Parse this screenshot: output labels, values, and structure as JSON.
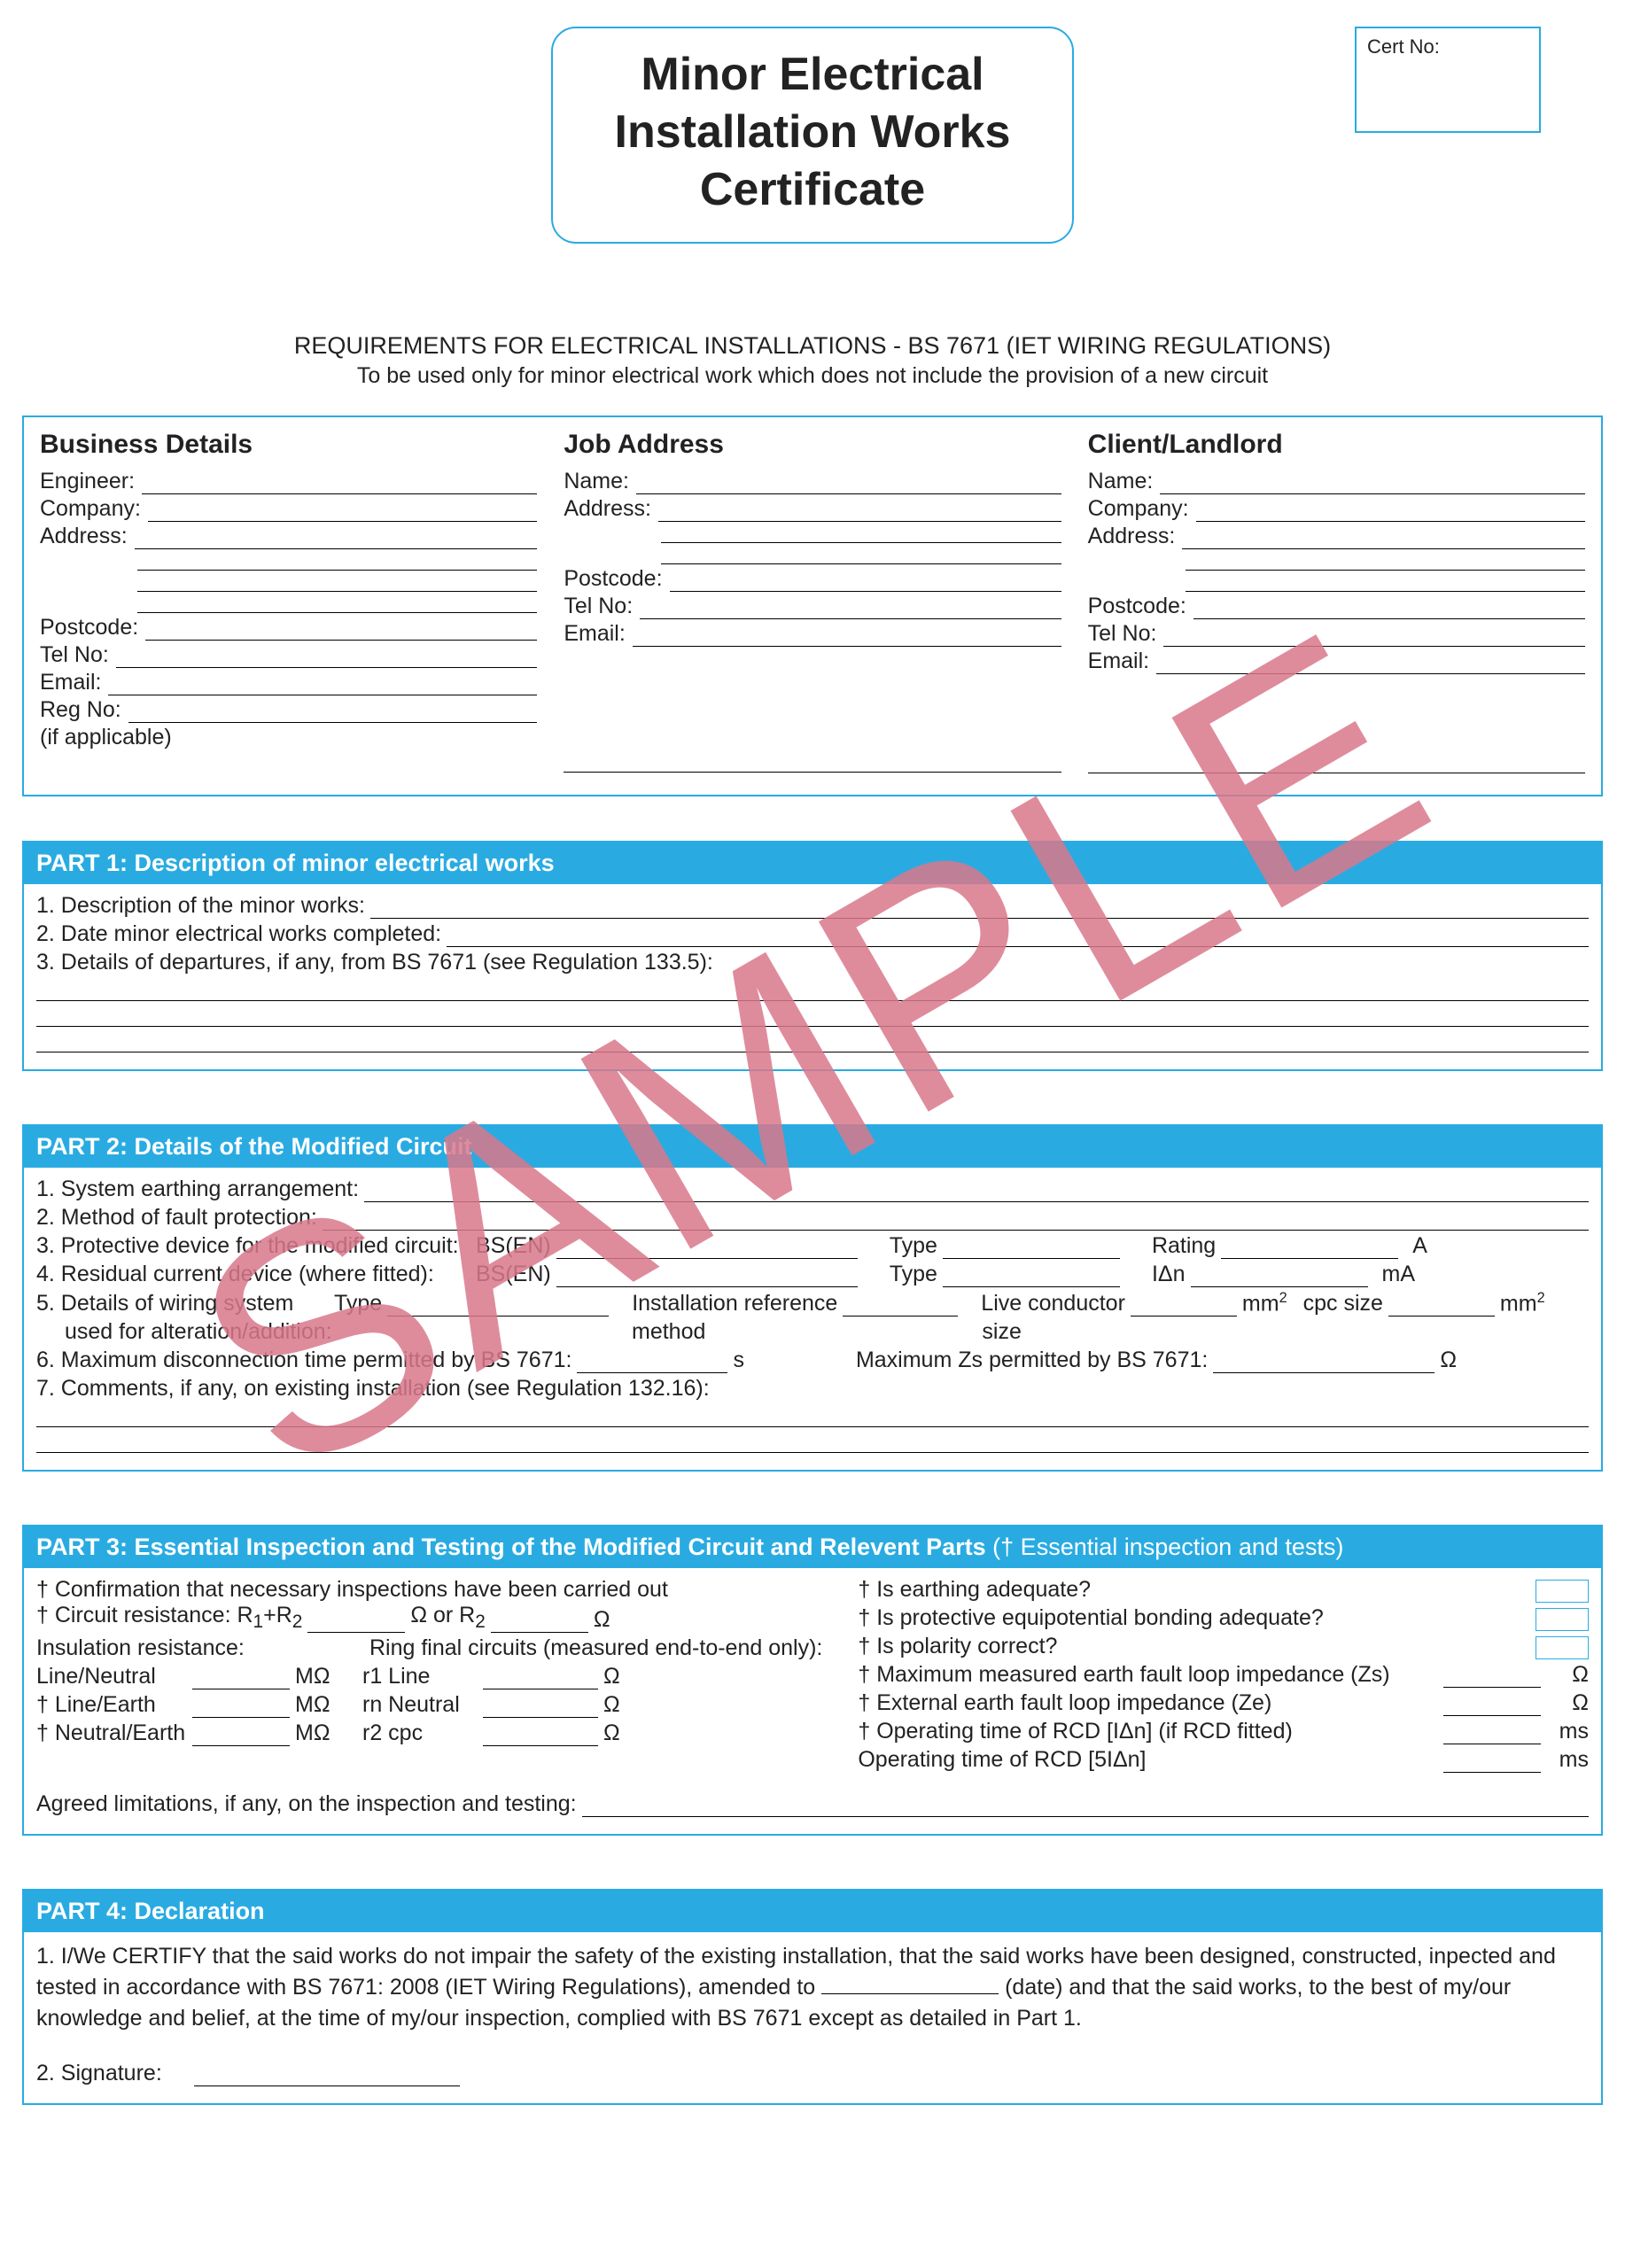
{
  "colors": {
    "accent": "#29abe2",
    "watermark": "#d9788b",
    "text": "#222222",
    "bg": "#ffffff"
  },
  "watermark": "SAMPLE",
  "title": {
    "line1": "Minor Electrical",
    "line2": "Installation Works",
    "line3": "Certificate"
  },
  "cert_box_label": "Cert No:",
  "requirements": {
    "line1": "REQUIREMENTS FOR ELECTRICAL INSTALLATIONS - BS 7671 (IET WIRING REGULATIONS)",
    "line2": "To be used only for minor electrical work which does not include the provision of a new circuit"
  },
  "details": {
    "business": {
      "heading": "Business Details",
      "fields": [
        "Engineer:",
        "Company:",
        "Address:"
      ],
      "extra_address_lines": 3,
      "fields2": [
        "Postcode:",
        "Tel No:",
        "Email:",
        "Reg No:"
      ],
      "tail": "(if applicable)"
    },
    "job": {
      "heading": "Job Address",
      "fields": [
        "Name:",
        "Address:"
      ],
      "extra_address_lines": 2,
      "fields2": [
        "Postcode:",
        "Tel No:",
        "Email:"
      ]
    },
    "client": {
      "heading": "Client/Landlord",
      "fields": [
        "Name:",
        "Company:",
        "Address:"
      ],
      "extra_address_lines": 2,
      "fields2": [
        "Postcode:",
        "Tel No:",
        "Email:"
      ]
    }
  },
  "part1": {
    "header": "PART 1: Description of minor electrical works",
    "items": [
      "1.  Description of the minor works:",
      "2.  Date minor electrical works completed:",
      "3.  Details of departures, if any, from BS 7671 (see Regulation 133.5):"
    ],
    "trailing_full_lines": 3
  },
  "part2": {
    "header": "PART 2: Details of the Modified Circuit",
    "row1": "1.  System earthing arrangement:",
    "row2": "2.  Method of fault protection:",
    "row3": {
      "lead": "3.  Protective device for the modified circuit:",
      "bs": "BS(EN)",
      "type": "Type",
      "rating": "Rating",
      "unit": "A"
    },
    "row4": {
      "lead": "4.  Residual current device (where fitted):",
      "bs": "BS(EN)",
      "type": "Type",
      "idn": "IΔn",
      "unit": "mA"
    },
    "row5": {
      "lead": "5.  Details of wiring system",
      "type": "Type",
      "ref": "Installation reference",
      "ref2": "method",
      "live": "Live conductor",
      "size": "size",
      "mm2": "mm",
      "cpc": "cpc size"
    },
    "row5b": "used for alteration/addition:",
    "row6": {
      "lead": "6.  Maximum disconnection time permitted by BS 7671:",
      "s": "s",
      "zs": "Maximum Zs permitted by BS 7671:",
      "ohm": "Ω"
    },
    "row7": "7.  Comments, if any, on existing installation (see Regulation 132.16):",
    "trailing_full_lines": 2
  },
  "part3": {
    "header": "PART 3: Essential Inspection and Testing of the Modified Circuit and Relevent Parts",
    "header_note": "(† Essential inspection and tests)",
    "left": {
      "l1": "† Confirmation that necessary inspections have been carried out",
      "l2a": "† Circuit resistance: R",
      "l2a_sub": "1",
      "l2b": "+R",
      "l2b_sub": "2",
      "l2c": "Ω or R",
      "l2c_sub": "2",
      "l2d": "Ω",
      "l3": "Insulation resistance:",
      "l3r": "Ring final circuits (measured end-to-end only):",
      "rows": [
        {
          "a": "Line/Neutral",
          "u": "MΩ",
          "b": "r1 Line",
          "u2": "Ω"
        },
        {
          "a": "† Line/Earth",
          "u": "MΩ",
          "b": "rn Neutral",
          "u2": "Ω"
        },
        {
          "a": "† Neutral/Earth",
          "u": "MΩ",
          "b": "r2 cpc",
          "u2": "Ω"
        }
      ],
      "agreed": "Agreed limitations, if any, on the inspection and testing:"
    },
    "right": [
      {
        "q": "† Is earthing adequate?",
        "type": "box"
      },
      {
        "q": "† Is protective equipotential bonding adequate?",
        "type": "box"
      },
      {
        "q": "† Is polarity correct?",
        "type": "box"
      },
      {
        "q": "† Maximum measured earth fault loop impedance (Zs)",
        "type": "val",
        "unit": "Ω"
      },
      {
        "q": "† External earth fault loop impedance (Ze)",
        "type": "val",
        "unit": "Ω"
      },
      {
        "q": "† Operating time of RCD [IΔn] (if RCD fitted)",
        "type": "val",
        "unit": "ms"
      },
      {
        "q": "Operating time of RCD [5IΔn]",
        "type": "val",
        "unit": "ms"
      }
    ]
  },
  "part4": {
    "header": "PART 4: Declaration",
    "p1a": "1.  I/We CERTIFY that the said works do not impair the safety of the existing installation, that the said works have been designed, constructed, inpected and tested in accordance with BS 7671: 2008 (IET Wiring Regulations), amended to",
    "p1b": "(date) and that the said works, to the best of my/our knowledge and belief, at the time of my/our inspection, complied with BS 7671 except as detailed in Part 1.",
    "sig": "2.  Signature:"
  }
}
